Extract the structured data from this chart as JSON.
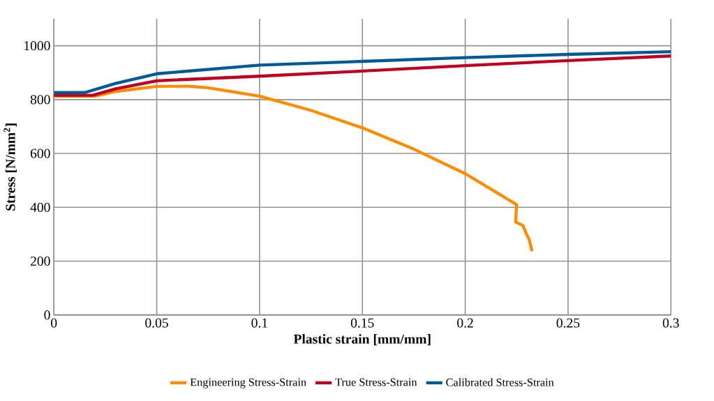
{
  "chart_data": {
    "type": "line",
    "xlabel": "Plastic strain [mm/mm]",
    "ylabel": "Stress [N/mm$^{2}$]",
    "xlim": [
      0,
      0.3
    ],
    "ylim": [
      0,
      1100
    ],
    "xticks": [
      0,
      0.05,
      0.1,
      0.15,
      0.2,
      0.25,
      0.3
    ],
    "yticks": [
      0,
      200,
      400,
      600,
      800,
      1000
    ],
    "grid": true,
    "legend": "bottom",
    "marker": "none",
    "line_style": "solid",
    "series": [
      {
        "name": "Engineering Stress-Strain",
        "color": "#ff8c00",
        "x": [
          0,
          0.02,
          0.03,
          0.05,
          0.065,
          0.075,
          0.1,
          0.125,
          0.15,
          0.175,
          0.2,
          0.225,
          0.2245,
          0.228,
          0.2298,
          0.2311,
          0.2325
        ],
        "values": [
          813,
          813,
          830,
          849,
          850,
          844,
          813,
          760,
          695,
          616,
          525,
          410,
          345,
          333,
          300,
          281,
          237
        ]
      },
      {
        "name": "True Stress-Strain",
        "color": "#c00020",
        "x": [
          0,
          0.019,
          0.03,
          0.05,
          0.1,
          0.15,
          0.2,
          0.25,
          0.3
        ],
        "values": [
          816,
          816,
          840,
          870,
          887,
          906,
          926,
          945,
          962
        ]
      },
      {
        "name": "Calibrated Stress-Strain",
        "color": "#005a96",
        "x": [
          0,
          0.015,
          0.03,
          0.05,
          0.1,
          0.15,
          0.2,
          0.25,
          0.3
        ],
        "values": [
          826,
          826,
          860,
          896,
          928,
          942,
          956,
          968,
          978
        ]
      }
    ]
  }
}
